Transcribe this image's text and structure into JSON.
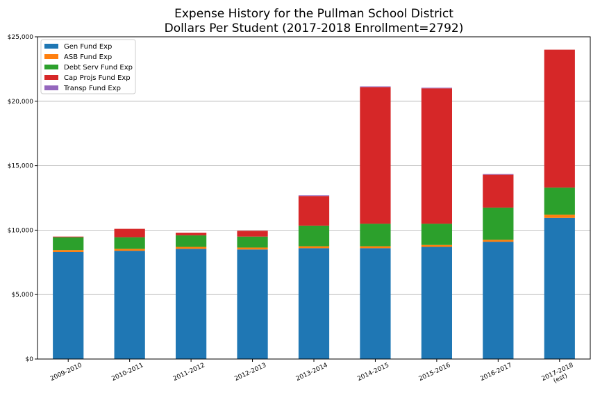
{
  "chart_data": {
    "type": "bar",
    "stacked": true,
    "title_line1": "Expense History for the Pullman School District",
    "title_line2": "Dollars Per Student (2017-2018 Enrollment=2792)",
    "xlabel": "",
    "ylabel": "",
    "ylim": [
      0,
      25000
    ],
    "yticks": [
      0,
      5000,
      10000,
      15000,
      20000,
      25000
    ],
    "ytick_labels": [
      "$0",
      "$5,000",
      "$10,000",
      "$15,000",
      "$20,000",
      "$25,000"
    ],
    "grid": "horizontal",
    "legend_position": "upper-left",
    "categories": [
      "2009-2010",
      "2010-2011",
      "2011-2012",
      "2012-2013",
      "2013-2014",
      "2014-2015",
      "2015-2016",
      "2016-2017",
      "2017-2018"
    ],
    "category_sublabels": [
      "",
      "",
      "",
      "",
      "",
      "",
      "",
      "",
      "(est)"
    ],
    "series": [
      {
        "name": "Gen Fund Exp",
        "color": "#1f77b4",
        "values": [
          8300,
          8400,
          8550,
          8500,
          8600,
          8600,
          8700,
          9100,
          10950
        ]
      },
      {
        "name": "ASB Fund Exp",
        "color": "#ff7f0e",
        "values": [
          150,
          150,
          150,
          150,
          150,
          150,
          150,
          150,
          250
        ]
      },
      {
        "name": "Debt Serv Fund Exp",
        "color": "#2ca02c",
        "values": [
          1000,
          900,
          900,
          850,
          1600,
          1750,
          1650,
          2500,
          2100
        ]
      },
      {
        "name": "Cap Projs Fund Exp",
        "color": "#d62728",
        "values": [
          50,
          650,
          200,
          450,
          2300,
          10600,
          10500,
          2550,
          10700
        ]
      },
      {
        "name": "Transp Fund Exp",
        "color": "#9467bd",
        "values": [
          0,
          0,
          0,
          0,
          50,
          50,
          50,
          50,
          0
        ]
      }
    ]
  }
}
